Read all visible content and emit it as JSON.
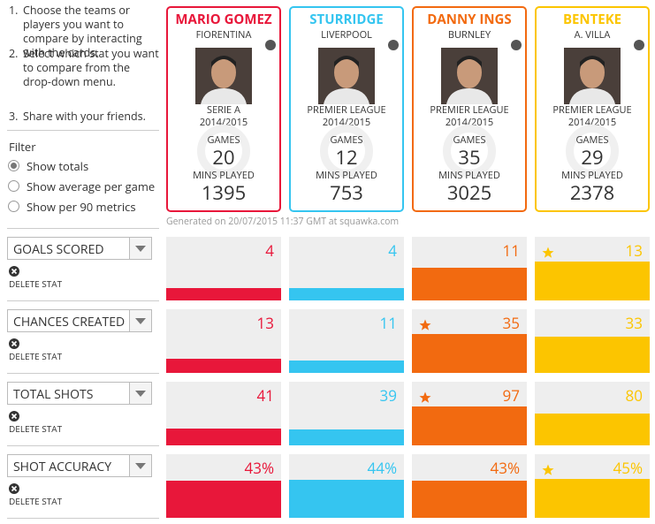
{
  "instructions": [
    {
      "number": "1.",
      "text": "Choose the teams or players you want to compare by interacting with the cards."
    },
    {
      "number": "2.",
      "text": "Select which stat you want to compare from the drop-down menu."
    },
    {
      "number": "3.",
      "text": "Share with your friends."
    }
  ],
  "filter": {
    "title": "Filter",
    "options": [
      "Show totals",
      "Show average per game",
      "Show per 90 metrics"
    ],
    "selected": 0
  },
  "labels": {
    "games": "GAMES",
    "mins": "MINS PLAYED",
    "delete": "DELETE STAT"
  },
  "players": [
    {
      "name": "MARIO GOMEZ",
      "club": "FIORENTINA",
      "league": "SERIE A",
      "season": "2014/2015",
      "games": 20,
      "mins": 1395,
      "color": "#e8173a"
    },
    {
      "name": "STURRIDGE",
      "club": "LIVERPOOL",
      "league": "PREMIER LEAGUE",
      "season": "2014/2015",
      "games": 12,
      "mins": 753,
      "color": "#35c5f0"
    },
    {
      "name": "DANNY INGS",
      "club": "BURNLEY",
      "league": "PREMIER LEAGUE",
      "season": "2014/2015",
      "games": 35,
      "mins": 3025,
      "color": "#f26a10"
    },
    {
      "name": "BENTEKE",
      "club": "A. VILLA",
      "league": "PREMIER LEAGUE",
      "season": "2014/2015",
      "games": 29,
      "mins": 2378,
      "color": "#fcc500"
    }
  ],
  "generated": "Generated on 20/07/2015 11:37 GMT at squawka.com",
  "stats": [
    {
      "name": "GOALS SCORED",
      "values": [
        4,
        4,
        11,
        13
      ]
    },
    {
      "name": "CHANCES CREATED",
      "values": [
        13,
        11,
        35,
        33
      ]
    },
    {
      "name": "TOTAL SHOTS",
      "values": [
        41,
        39,
        97,
        80
      ]
    },
    {
      "name": "SHOT ACCURACY",
      "values": [
        43,
        44,
        43,
        45
      ],
      "value_labels": [
        "43%",
        "44%",
        "43%",
        "45%"
      ]
    }
  ]
}
